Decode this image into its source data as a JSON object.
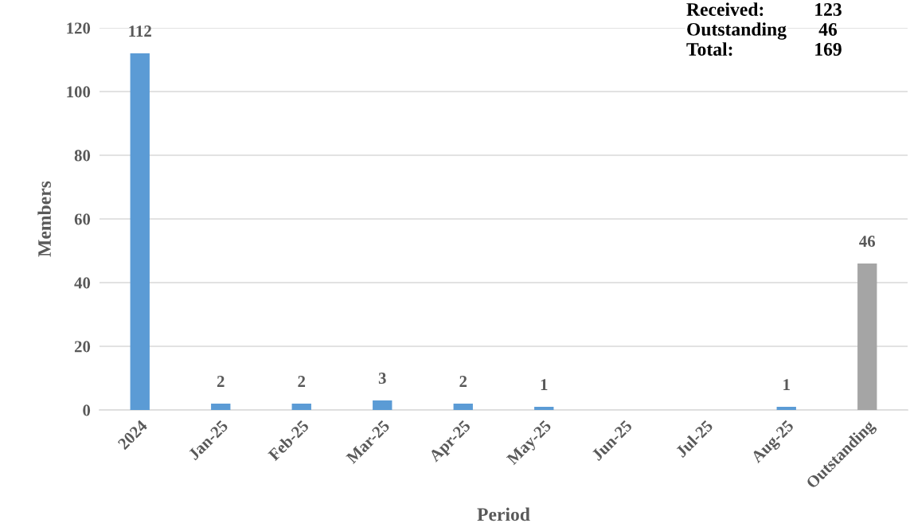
{
  "chart_data": {
    "type": "bar",
    "xlabel": "Period",
    "ylabel": "Members",
    "categories": [
      "2024",
      "Jan-25",
      "Feb-25",
      "Mar-25",
      "Apr-25",
      "May-25",
      "Jun-25",
      "Jul-25",
      "Aug-25",
      "Outstanding"
    ],
    "values": [
      112,
      2,
      2,
      3,
      2,
      1,
      0,
      0,
      1,
      46
    ],
    "colors": [
      "#5b9bd5",
      "#5b9bd5",
      "#5b9bd5",
      "#5b9bd5",
      "#5b9bd5",
      "#5b9bd5",
      "#5b9bd5",
      "#5b9bd5",
      "#5b9bd5",
      "#a5a5a5"
    ],
    "value_labels": [
      "112",
      "2",
      "2",
      "3",
      "2",
      "1",
      null,
      null,
      "1",
      "46"
    ],
    "ylim": [
      0,
      120
    ],
    "yticks": [
      0,
      20,
      40,
      60,
      80,
      100,
      120
    ],
    "grid": "y",
    "legend": false,
    "annotations": [
      "Received:",
      "123",
      "Outstanding",
      "46",
      "Total:",
      "169"
    ]
  }
}
